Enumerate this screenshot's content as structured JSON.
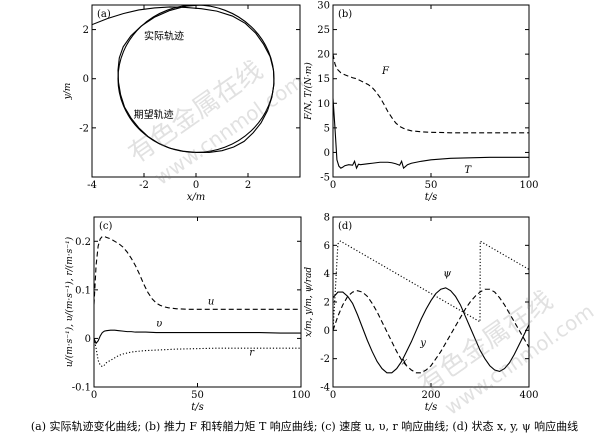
{
  "caption": "(a) 实际轨迹变化曲线; (b) 推力 F 和转艏力矩 T 响应曲线; (c) 速度 u, υ, r 响应曲线; (d) 状态 x, y, ψ 响应曲线",
  "watermark": {
    "line1": "有色金属在线",
    "line2": "www.cnnmol.com"
  },
  "chart_data": [
    {
      "id": "a",
      "panel_label": "(a)",
      "type": "line",
      "xlabel": "x/m",
      "ylabel": "y/m",
      "xlim": [
        -4,
        4
      ],
      "ylim": [
        -4,
        3
      ],
      "xticks": [
        -4,
        -2,
        0,
        2
      ],
      "yticks": [
        -2,
        0,
        2
      ],
      "annotations": [
        "实际轨迹",
        "期望轨迹"
      ],
      "series": [
        {
          "name": "实际轨迹",
          "style": "solid",
          "x": [
            -4.0,
            -3.4,
            -2.8,
            -2.2,
            -1.6,
            -1.0,
            -0.4,
            0.2,
            0.8,
            1.4,
            1.9,
            2.3,
            2.6,
            2.85,
            2.98,
            3.0,
            2.92,
            2.75,
            2.5,
            2.2,
            1.85,
            1.45,
            1.0,
            0.5,
            0.0,
            -0.5,
            -1.0,
            -1.45,
            -1.85,
            -2.2,
            -2.5,
            -2.75,
            -2.9,
            -2.98,
            -3.0,
            -2.95,
            -2.8,
            -2.5,
            -2.1,
            -1.6,
            -1.0,
            -0.4,
            0.2
          ],
          "y": [
            2.2,
            2.45,
            2.65,
            2.8,
            2.88,
            2.92,
            2.9,
            2.85,
            2.75,
            2.55,
            2.25,
            1.85,
            1.4,
            0.9,
            0.35,
            -0.2,
            -0.75,
            -1.3,
            -1.8,
            -2.2,
            -2.55,
            -2.78,
            -2.93,
            -3.0,
            -3.0,
            -2.95,
            -2.83,
            -2.62,
            -2.35,
            -2.0,
            -1.6,
            -1.15,
            -0.65,
            -0.15,
            0.35,
            0.85,
            1.3,
            1.75,
            2.15,
            2.5,
            2.78,
            2.95,
            3.0
          ]
        },
        {
          "name": "期望轨迹",
          "style": "solid",
          "circle": {
            "cx": 0.0,
            "cy": 0.0,
            "r": 3.0
          }
        }
      ]
    },
    {
      "id": "b",
      "panel_label": "(b)",
      "type": "line",
      "xlabel": "t/s",
      "ylabel": "F/N, T/(N·m)",
      "xlim": [
        0,
        100
      ],
      "ylim": [
        -5,
        30
      ],
      "xticks": [
        0,
        50,
        100
      ],
      "yticks": [
        -5,
        0,
        5,
        10,
        15,
        20,
        25,
        30
      ],
      "series": [
        {
          "name": "F",
          "style": "dashed",
          "x": [
            0,
            1,
            2,
            4,
            6,
            8,
            10,
            12,
            14,
            16,
            18,
            20,
            22,
            24,
            26,
            28,
            30,
            32,
            34,
            36,
            38,
            40,
            45,
            50,
            60,
            70,
            80,
            90,
            100
          ],
          "y": [
            20,
            18,
            17,
            16.2,
            15.8,
            15.5,
            15.2,
            15.0,
            14.6,
            14.2,
            13.8,
            13.2,
            12.3,
            11.2,
            9.8,
            8.3,
            7.1,
            6.0,
            5.3,
            4.9,
            4.6,
            4.4,
            4.2,
            4.1,
            4.0,
            4.0,
            4.0,
            4.0,
            4.0
          ]
        },
        {
          "name": "T",
          "style": "solid",
          "x": [
            0,
            1,
            2,
            3,
            4,
            5,
            6,
            8,
            10,
            11,
            12,
            13,
            14,
            16,
            18,
            20,
            22,
            24,
            26,
            28,
            30,
            32,
            34,
            35,
            36,
            38,
            40,
            45,
            50,
            60,
            70,
            80,
            90,
            100
          ],
          "y": [
            11,
            5,
            -1.5,
            -2.8,
            -3.2,
            -3.0,
            -2.7,
            -2.5,
            -2.6,
            -1.8,
            -3.2,
            -2.4,
            -2.5,
            -2.4,
            -2.3,
            -2.2,
            -2.1,
            -2.0,
            -2.0,
            -2.0,
            -2.1,
            -2.3,
            -2.6,
            -1.8,
            -3.2,
            -2.5,
            -2.2,
            -1.8,
            -1.5,
            -1.2,
            -1.1,
            -1.0,
            -1.0,
            -1.0
          ]
        }
      ]
    },
    {
      "id": "c",
      "panel_label": "(c)",
      "type": "line",
      "xlabel": "t/s",
      "ylabel": "u/(m·s⁻¹), υ/(m·s⁻¹), r/(m·s⁻¹)",
      "xlim": [
        0,
        100
      ],
      "ylim": [
        -0.1,
        0.25
      ],
      "xticks": [
        0,
        50,
        100
      ],
      "yticks": [
        -0.1,
        0,
        0.1,
        0.2
      ],
      "series": [
        {
          "name": "u",
          "style": "dashed",
          "x": [
            0,
            1,
            2,
            3,
            4,
            5,
            6,
            8,
            10,
            12,
            14,
            16,
            18,
            20,
            22,
            24,
            26,
            28,
            30,
            32,
            34,
            36,
            38,
            40,
            45,
            50,
            60,
            70,
            80,
            90,
            100
          ],
          "y": [
            0.07,
            0.15,
            0.19,
            0.205,
            0.21,
            0.21,
            0.208,
            0.205,
            0.2,
            0.195,
            0.188,
            0.178,
            0.165,
            0.15,
            0.132,
            0.112,
            0.095,
            0.082,
            0.073,
            0.068,
            0.065,
            0.063,
            0.062,
            0.061,
            0.06,
            0.06,
            0.06,
            0.06,
            0.06,
            0.06,
            0.06
          ]
        },
        {
          "name": "υ",
          "style": "solid",
          "x": [
            0,
            1,
            2,
            3,
            4,
            5,
            6,
            8,
            10,
            12,
            14,
            16,
            18,
            20,
            25,
            30,
            40,
            50,
            60,
            70,
            80,
            90,
            100
          ],
          "y": [
            0.0,
            -0.01,
            -0.005,
            0.005,
            0.012,
            0.015,
            0.016,
            0.017,
            0.017,
            0.016,
            0.015,
            0.014,
            0.014,
            0.013,
            0.013,
            0.012,
            0.012,
            0.012,
            0.012,
            0.012,
            0.012,
            0.011,
            0.011
          ]
        },
        {
          "name": "r",
          "style": "dotted",
          "x": [
            0,
            1,
            2,
            3,
            4,
            5,
            6,
            8,
            10,
            12,
            14,
            16,
            18,
            20,
            25,
            30,
            40,
            50,
            60,
            70,
            80,
            90,
            100
          ],
          "y": [
            0.0,
            -0.02,
            -0.045,
            -0.055,
            -0.058,
            -0.055,
            -0.05,
            -0.045,
            -0.04,
            -0.035,
            -0.032,
            -0.03,
            -0.028,
            -0.027,
            -0.025,
            -0.024,
            -0.022,
            -0.021,
            -0.02,
            -0.02,
            -0.02,
            -0.02,
            -0.02
          ]
        }
      ]
    },
    {
      "id": "d",
      "panel_label": "(d)",
      "type": "line",
      "xlabel": "t/s",
      "ylabel": "x/m, y/m, ψ/rad",
      "xlim": [
        0,
        400
      ],
      "ylim": [
        -4,
        8
      ],
      "xticks": [
        0,
        200,
        400
      ],
      "yticks": [
        -4,
        -2,
        0,
        2,
        4,
        6,
        8
      ],
      "series": [
        {
          "name": "ψ",
          "style": "dotted",
          "x": [
            0,
            5,
            10,
            15,
            20,
            30,
            60,
            90,
            120,
            150,
            180,
            210,
            240,
            270,
            300,
            300.5,
            310,
            340,
            370,
            400
          ],
          "y": [
            0,
            3,
            6.1,
            6.3,
            6.2,
            6.0,
            5.4,
            4.8,
            4.2,
            3.6,
            3.0,
            2.4,
            1.8,
            1.2,
            0.6,
            6.3,
            6.1,
            5.5,
            4.9,
            4.3
          ]
        },
        {
          "name": "y",
          "style": "dashed",
          "x": [
            0,
            10,
            20,
            30,
            40,
            50,
            60,
            70,
            80,
            90,
            100,
            110,
            120,
            130,
            140,
            150,
            160,
            170,
            180,
            190,
            200,
            210,
            220,
            230,
            240,
            250,
            260,
            270,
            280,
            290,
            300,
            310,
            320,
            330,
            340,
            350,
            360,
            370,
            380,
            390,
            400
          ],
          "y": [
            0,
            1.0,
            1.8,
            2.4,
            2.7,
            2.8,
            2.7,
            2.4,
            1.9,
            1.3,
            0.6,
            -0.1,
            -0.8,
            -1.5,
            -2.1,
            -2.5,
            -2.8,
            -3.0,
            -3.0,
            -2.8,
            -2.5,
            -2.0,
            -1.5,
            -0.9,
            -0.3,
            0.3,
            0.9,
            1.5,
            2.0,
            2.4,
            2.7,
            2.9,
            2.9,
            2.7,
            2.3,
            1.8,
            1.2,
            0.6,
            0.0,
            -0.6,
            -1.2
          ]
        },
        {
          "name": "x",
          "style": "solid",
          "x": [
            0,
            10,
            20,
            30,
            40,
            50,
            60,
            70,
            80,
            90,
            100,
            110,
            120,
            130,
            140,
            150,
            160,
            170,
            180,
            190,
            200,
            210,
            220,
            230,
            240,
            250,
            260,
            270,
            280,
            290,
            300,
            310,
            320,
            330,
            340,
            350,
            360,
            370,
            380,
            390,
            400
          ],
          "y": [
            2.3,
            2.7,
            2.7,
            2.4,
            1.9,
            1.1,
            0.2,
            -0.7,
            -1.5,
            -2.2,
            -2.7,
            -3.0,
            -3.0,
            -2.7,
            -2.2,
            -1.5,
            -0.8,
            0.0,
            0.8,
            1.5,
            2.1,
            2.6,
            2.9,
            3.0,
            2.8,
            2.4,
            1.8,
            1.0,
            0.2,
            -0.6,
            -1.4,
            -2.0,
            -2.5,
            -2.8,
            -2.9,
            -2.7,
            -2.3,
            -1.7,
            -1.0,
            -0.3,
            0.4
          ]
        }
      ]
    }
  ]
}
